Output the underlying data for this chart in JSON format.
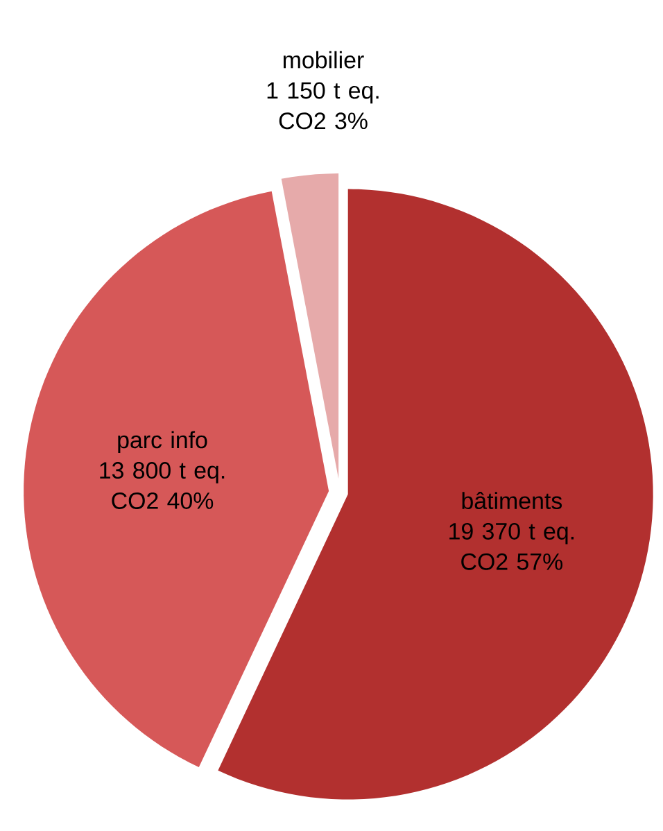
{
  "chart_data": {
    "type": "pie",
    "categories": [
      "bâtiments",
      "parc info",
      "mobilier"
    ],
    "values": [
      57,
      40,
      3
    ],
    "value_labels": [
      "19 370 t eq. CO2 57%",
      "13 800 t eq. CO2 40%",
      "1 150 t eq. CO2 3%"
    ],
    "colors": [
      "#b2302f",
      "#d65858",
      "#e6aaaa"
    ]
  }
}
